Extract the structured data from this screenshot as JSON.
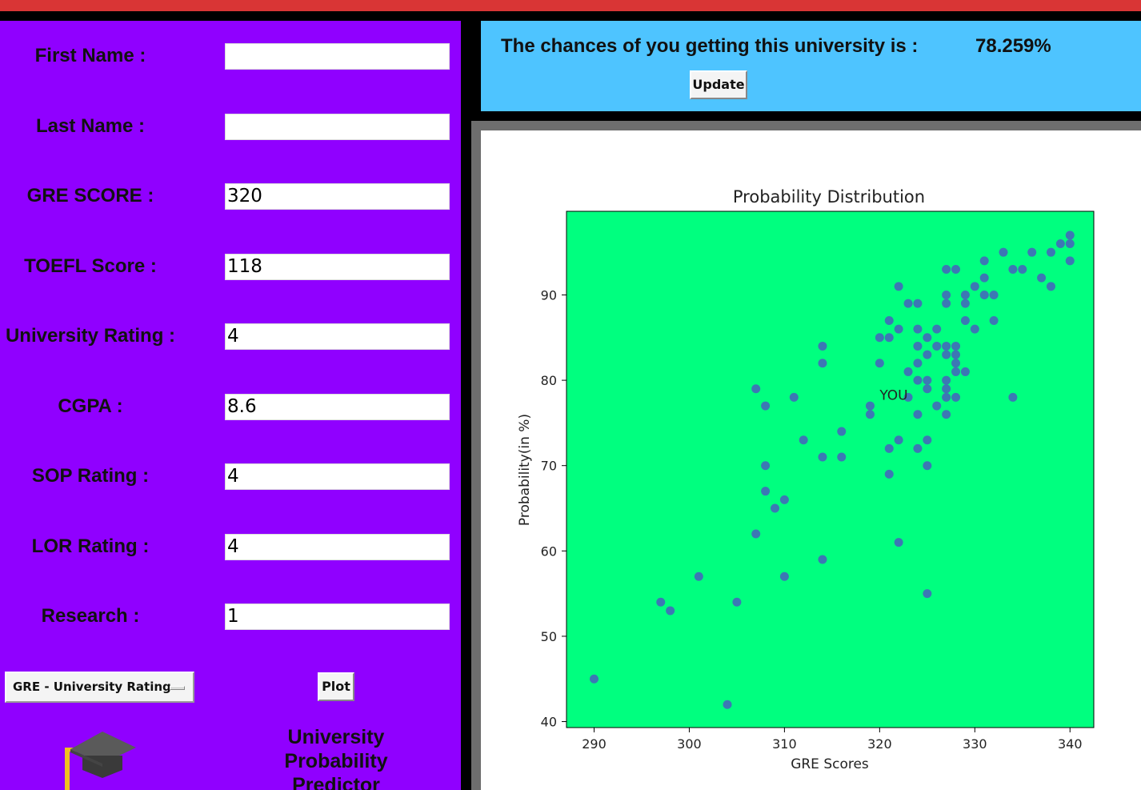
{
  "form": {
    "fields": [
      {
        "label": "First Name :",
        "value": ""
      },
      {
        "label": "Last Name :",
        "value": ""
      },
      {
        "label": "GRE SCORE :",
        "value": "320"
      },
      {
        "label": "TOEFL Score :",
        "value": "118"
      },
      {
        "label": "University Rating :",
        "value": "4"
      },
      {
        "label": "CGPA :",
        "value": "8.6"
      },
      {
        "label": "SOP Rating :",
        "value": "4"
      },
      {
        "label": "LOR Rating :",
        "value": "4"
      },
      {
        "label": "Research :",
        "value": "1"
      }
    ],
    "dropdown_selected": "GRE - University Rating",
    "plot_label": "Plot",
    "app_name": "University Probability Predictor"
  },
  "result": {
    "text": "The chances of you getting this university is :",
    "percent": "78.259%",
    "update_label": "Update"
  },
  "colors": {
    "left_panel": "#9000ff",
    "result_panel": "#4ec4ff",
    "plot_bg": "#00ff7f",
    "point": "#3c78b4",
    "title_bar": "#d93535"
  },
  "chart_data": {
    "type": "scatter",
    "title": "Probability Distribution",
    "xlabel": "GRE Scores",
    "ylabel": "Probability(in %)",
    "xlim": [
      287.1,
      342.5
    ],
    "ylim": [
      39.3,
      99.8
    ],
    "xticks": [
      290,
      300,
      310,
      320,
      330,
      340
    ],
    "yticks": [
      40,
      50,
      60,
      70,
      80,
      90
    ],
    "annotation": {
      "text": "YOU",
      "x": 320,
      "y": 78.26
    },
    "points": [
      [
        290,
        45
      ],
      [
        304,
        42
      ],
      [
        297,
        54
      ],
      [
        298,
        53
      ],
      [
        301,
        57
      ],
      [
        305,
        54
      ],
      [
        307,
        79
      ],
      [
        308,
        77
      ],
      [
        311,
        78
      ],
      [
        307,
        62
      ],
      [
        308,
        70
      ],
      [
        308,
        67
      ],
      [
        309,
        65
      ],
      [
        310,
        66
      ],
      [
        310,
        57
      ],
      [
        312,
        73
      ],
      [
        314,
        84
      ],
      [
        314,
        82
      ],
      [
        314,
        71
      ],
      [
        314,
        59
      ],
      [
        316,
        74
      ],
      [
        316,
        71
      ],
      [
        319,
        77
      ],
      [
        319,
        76
      ],
      [
        320,
        85
      ],
      [
        320,
        82
      ],
      [
        321,
        87
      ],
      [
        321,
        85
      ],
      [
        321,
        72
      ],
      [
        321,
        69
      ],
      [
        322,
        91
      ],
      [
        322,
        86
      ],
      [
        322,
        73
      ],
      [
        322,
        61
      ],
      [
        323,
        89
      ],
      [
        323,
        81
      ],
      [
        323,
        78
      ],
      [
        324,
        89
      ],
      [
        324,
        86
      ],
      [
        324,
        84
      ],
      [
        324,
        82
      ],
      [
        324,
        80
      ],
      [
        324,
        76
      ],
      [
        324,
        72
      ],
      [
        325,
        85
      ],
      [
        325,
        83
      ],
      [
        325,
        80
      ],
      [
        325,
        79
      ],
      [
        325,
        73
      ],
      [
        325,
        70
      ],
      [
        325,
        55
      ],
      [
        326,
        86
      ],
      [
        326,
        84
      ],
      [
        326,
        77
      ],
      [
        327,
        93
      ],
      [
        327,
        90
      ],
      [
        327,
        89
      ],
      [
        327,
        84
      ],
      [
        327,
        83
      ],
      [
        327,
        80
      ],
      [
        327,
        79
      ],
      [
        327,
        78
      ],
      [
        327,
        76
      ],
      [
        328,
        93
      ],
      [
        328,
        84
      ],
      [
        328,
        83
      ],
      [
        328,
        82
      ],
      [
        328,
        81
      ],
      [
        328,
        78
      ],
      [
        329,
        90
      ],
      [
        329,
        89
      ],
      [
        329,
        87
      ],
      [
        329,
        81
      ],
      [
        330,
        91
      ],
      [
        330,
        86
      ],
      [
        331,
        94
      ],
      [
        331,
        92
      ],
      [
        331,
        90
      ],
      [
        332,
        90
      ],
      [
        332,
        87
      ],
      [
        333,
        95
      ],
      [
        334,
        93
      ],
      [
        334,
        78
      ],
      [
        335,
        93
      ],
      [
        336,
        95
      ],
      [
        337,
        92
      ],
      [
        338,
        95
      ],
      [
        338,
        91
      ],
      [
        339,
        96
      ],
      [
        340,
        97
      ],
      [
        340,
        96
      ],
      [
        340,
        94
      ]
    ]
  }
}
